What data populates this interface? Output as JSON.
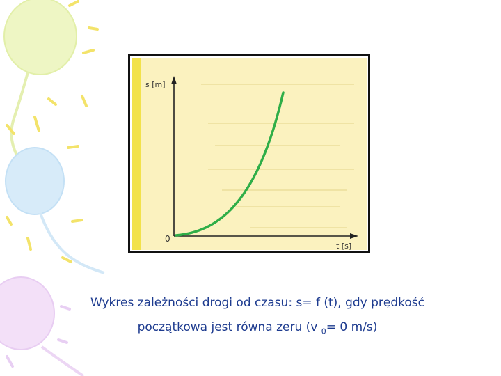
{
  "graph": {
    "y_axis_label": "s [m]",
    "x_axis_label": "t [s]",
    "origin_label": "0",
    "curve_color": "#2fae48",
    "background_color": "#fbf2bf",
    "strip_color": "#f2e24a"
  },
  "caption": {
    "line1": "Wykres zależności drogi od czasu: s= f (t), gdy prędkość",
    "line2_before": "początkowa jest równa zeru (v ",
    "line2_sub": "0",
    "line2_after": "= 0 m/s)",
    "color": "#1d3b8f"
  },
  "decorations": {
    "balloon_colors": [
      "#e8f3b8",
      "#cfe6f7",
      "#efd9f5"
    ]
  }
}
